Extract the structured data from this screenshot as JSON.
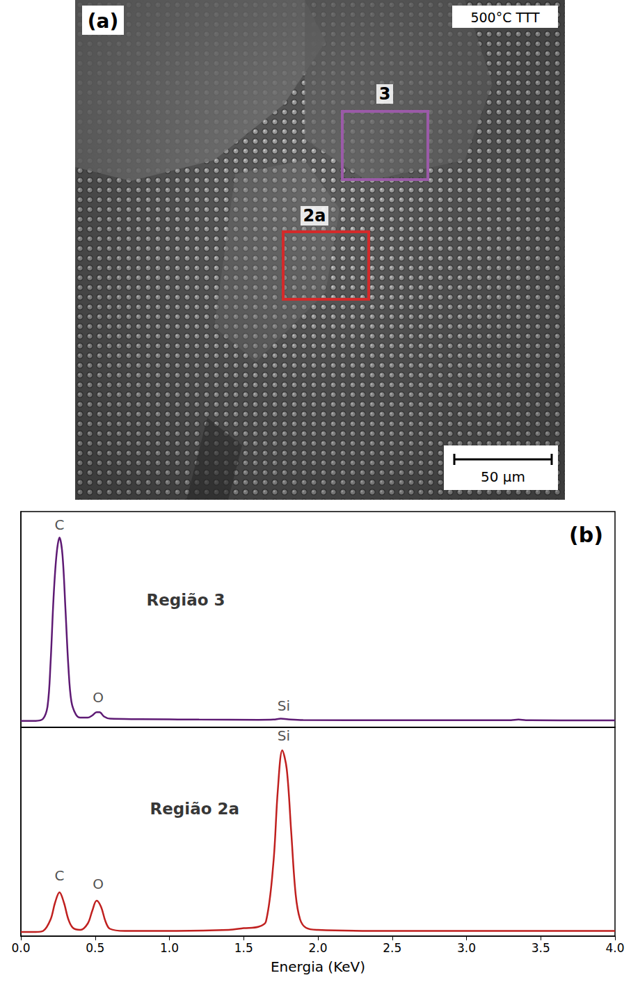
{
  "image": {
    "label": "(a)",
    "caption": "500°C TTT",
    "scale_bar": "50 µm",
    "regions": [
      {
        "label": "3",
        "color": "#9b5aa8"
      },
      {
        "label": "2a",
        "color": "#d42a2a"
      }
    ]
  },
  "chart_data": [
    {
      "type": "line",
      "color": "#5e1a74",
      "panel_label": "(b)",
      "x": [
        0.0,
        0.1,
        0.15,
        0.18,
        0.2,
        0.22,
        0.24,
        0.26,
        0.28,
        0.3,
        0.32,
        0.34,
        0.37,
        0.4,
        0.45,
        0.48,
        0.51,
        0.53,
        0.56,
        0.6,
        0.8,
        1.2,
        1.6,
        1.7,
        1.75,
        1.8,
        1.9,
        2.5,
        3.3,
        3.35,
        3.4,
        4.0
      ],
      "values": [
        3,
        3,
        4,
        10,
        30,
        60,
        80,
        88,
        80,
        55,
        28,
        12,
        6,
        4.5,
        4.5,
        5.5,
        7,
        7,
        5,
        4,
        3.8,
        3.6,
        3.5,
        3.6,
        4,
        3.7,
        3.4,
        3.3,
        3.3,
        3.6,
        3.3,
        3.2
      ],
      "xlim": [
        0,
        4
      ],
      "ylim": [
        0,
        100
      ],
      "tick_labels": false,
      "annotations": [
        {
          "text": "C",
          "x": 0.26,
          "y": 94
        },
        {
          "text": "O",
          "x": 0.52,
          "y": 14
        },
        {
          "text": "Si",
          "x": 1.77,
          "y": 10
        },
        {
          "text": "Região 3",
          "x": 1.11,
          "y": 59
        }
      ]
    },
    {
      "type": "line",
      "color": "#c0201f",
      "x": [
        0.0,
        0.1,
        0.15,
        0.2,
        0.23,
        0.26,
        0.29,
        0.32,
        0.35,
        0.4,
        0.45,
        0.48,
        0.51,
        0.54,
        0.57,
        0.6,
        0.7,
        1.0,
        1.4,
        1.5,
        1.6,
        1.65,
        1.7,
        1.73,
        1.76,
        1.79,
        1.82,
        1.85,
        1.88,
        1.92,
        2.0,
        2.5,
        3.0,
        3.5,
        4.0
      ],
      "values": [
        2,
        2,
        2.5,
        8,
        16,
        21,
        16,
        8,
        4,
        3,
        6,
        12,
        17,
        14,
        7,
        3.5,
        2.5,
        2.5,
        3,
        3.8,
        4.5,
        7,
        35,
        70,
        89,
        80,
        50,
        20,
        8,
        4,
        3,
        2.5,
        2.5,
        2.5,
        2.5
      ],
      "xlim": [
        0,
        4
      ],
      "ylim": [
        0,
        100
      ],
      "tick_labels": "x",
      "xticks": [
        {
          "value": 0,
          "label": "0.0"
        },
        0.5,
        {
          "value": 1,
          "label": "1.0"
        },
        1.5,
        {
          "value": 2,
          "label": "2.0"
        },
        2.5,
        {
          "value": 3,
          "label": "3.0"
        },
        3.5,
        {
          "value": 4,
          "label": "4.0"
        }
      ],
      "xlabel": "Energia (KeV)",
      "annotations": [
        {
          "text": "C",
          "x": 0.26,
          "y": 29
        },
        {
          "text": "O",
          "x": 0.52,
          "y": 25
        },
        {
          "text": "Si",
          "x": 1.77,
          "y": 96
        },
        {
          "text": "Região 2a",
          "x": 1.17,
          "y": 61
        }
      ]
    }
  ]
}
